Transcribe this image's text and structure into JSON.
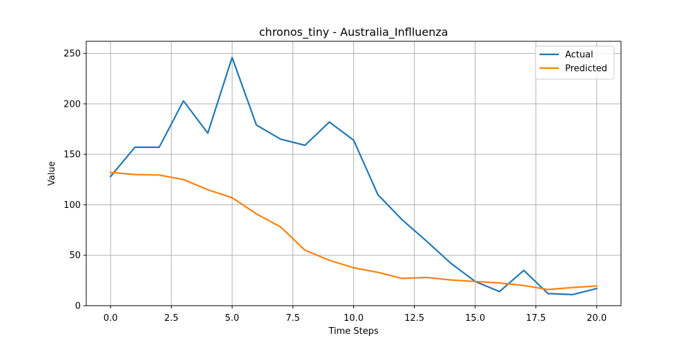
{
  "chart_data": {
    "type": "line",
    "title": "chronos_tiny - Australia_Inflluenza",
    "xlabel": "Time Steps",
    "ylabel": "Value",
    "xlim": [
      -1.0,
      21.0
    ],
    "ylim": [
      0,
      262
    ],
    "x_ticks": [
      0.0,
      2.5,
      5.0,
      7.5,
      10.0,
      12.5,
      15.0,
      17.5,
      20.0
    ],
    "x_tick_labels": [
      "0.0",
      "2.5",
      "5.0",
      "7.5",
      "10.0",
      "12.5",
      "15.0",
      "17.5",
      "20.0"
    ],
    "y_ticks": [
      0,
      50,
      100,
      150,
      200,
      250
    ],
    "y_tick_labels": [
      "0",
      "50",
      "100",
      "150",
      "200",
      "250"
    ],
    "grid": true,
    "legend_position": "top-right",
    "x": [
      0,
      1,
      2,
      3,
      4,
      5,
      6,
      7,
      8,
      9,
      10,
      11,
      12,
      13,
      14,
      15,
      16,
      17,
      18,
      19,
      20
    ],
    "series": [
      {
        "name": "Actual",
        "color": "#1f77b4",
        "values": [
          128,
          157,
          157,
          203,
          171,
          246,
          179,
          165,
          159,
          182,
          164,
          110,
          85,
          64,
          42,
          24,
          14,
          35,
          12,
          11,
          17
        ]
      },
      {
        "name": "Predicted",
        "color": "#ff7f0e",
        "values": [
          132,
          130,
          129.5,
          125,
          115,
          107,
          91,
          78,
          55,
          45,
          37.5,
          33,
          27,
          28,
          25.5,
          24,
          22.5,
          20,
          16,
          18,
          19.5
        ]
      }
    ]
  }
}
